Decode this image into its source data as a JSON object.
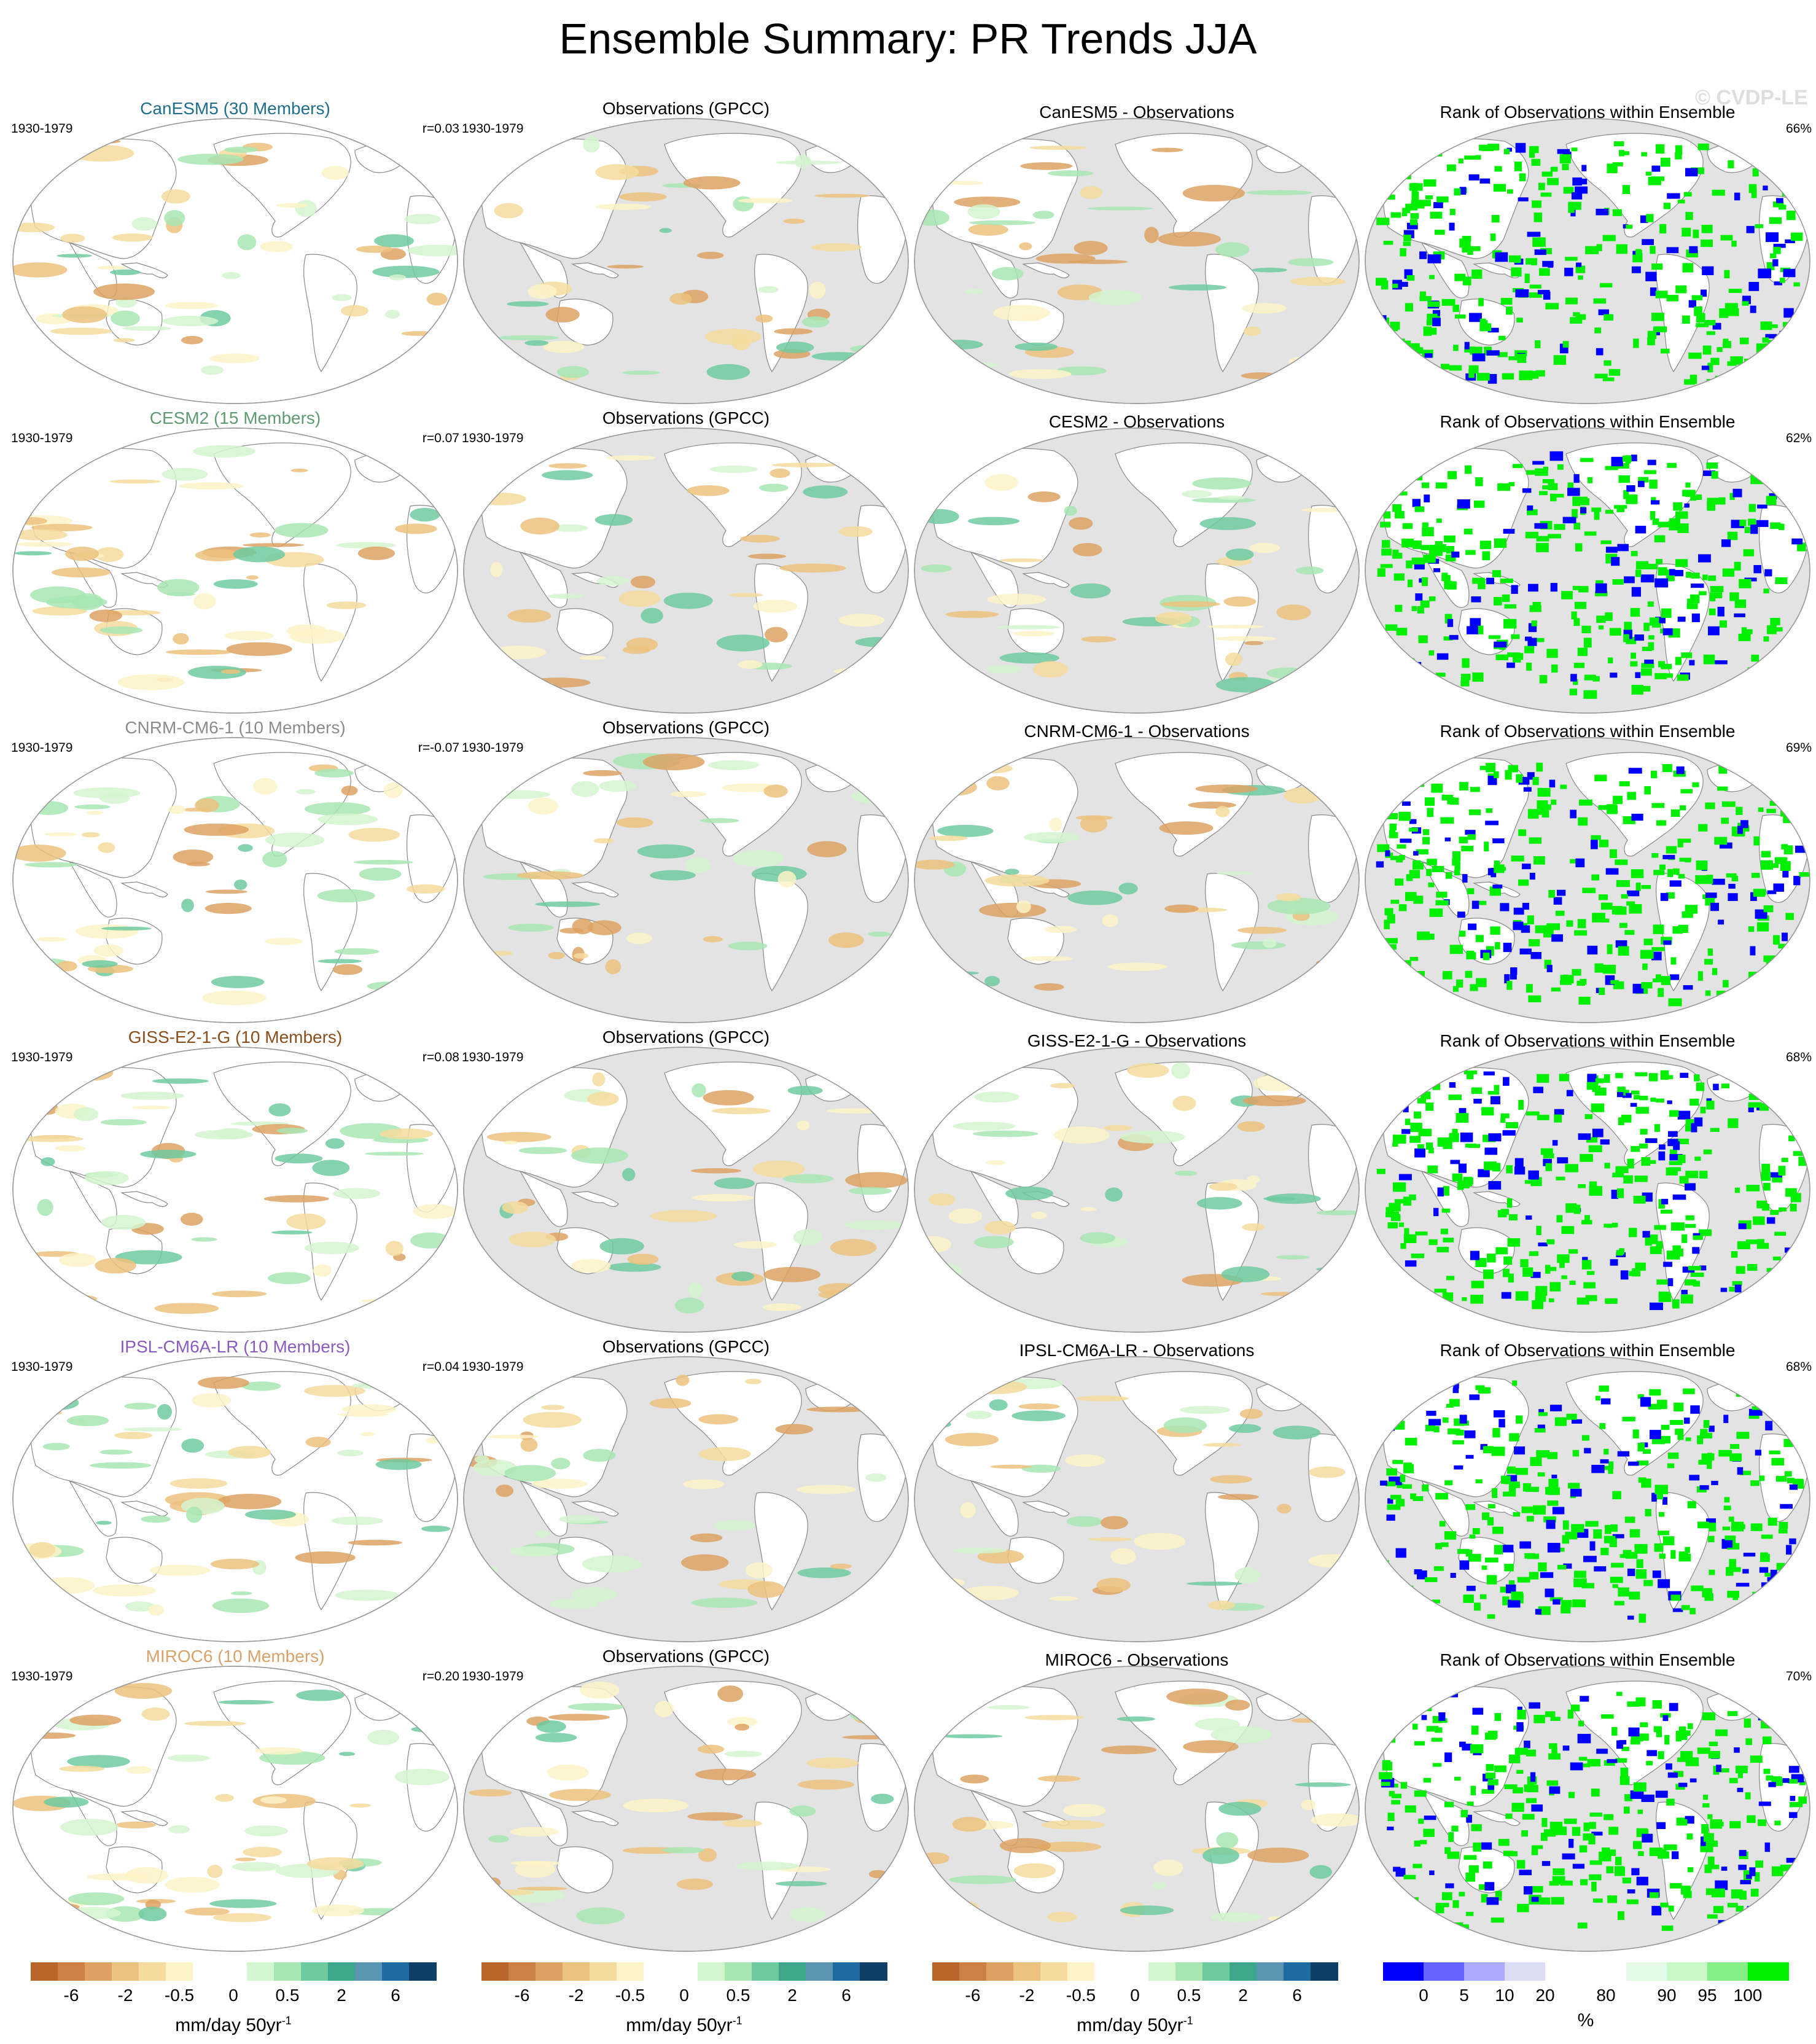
{
  "title": "Ensemble Summary: PR Trends JJA",
  "watermark": "© CVDP-LE",
  "period": "1930-1979",
  "obs_title": "Observations (GPCC)",
  "rank_title": "Rank of Observations within Ensemble",
  "rows": [
    {
      "model": "CanESM5",
      "members_label": "CanESM5 (30 Members)",
      "color": "#1f6e8c",
      "r": "r=0.03",
      "diff_title": "CanESM5 - Observations",
      "rank_pct": "66%"
    },
    {
      "model": "CESM2",
      "members_label": "CESM2 (15 Members)",
      "color": "#5f9a72",
      "r": "r=0.07",
      "diff_title": "CESM2 - Observations",
      "rank_pct": "62%"
    },
    {
      "model": "CNRM-CM6-1",
      "members_label": "CNRM-CM6-1 (10 Members)",
      "color": "#8c8c8c",
      "r": "r=-0.07",
      "diff_title": "CNRM-CM6-1 - Observations",
      "rank_pct": "69%"
    },
    {
      "model": "GISS-E2-1-G",
      "members_label": "GISS-E2-1-G (10 Members)",
      "color": "#8a4f1c",
      "r": "r=0.08",
      "diff_title": "GISS-E2-1-G - Observations",
      "rank_pct": "68%"
    },
    {
      "model": "IPSL-CM6A-LR",
      "members_label": "IPSL-CM6A-LR (10 Members)",
      "color": "#8a5bc0",
      "r": "r=0.04",
      "diff_title": "IPSL-CM6A-LR - Observations",
      "rank_pct": "68%"
    },
    {
      "model": "MIROC6",
      "members_label": "MIROC6 (10 Members)",
      "color": "#d8a26a",
      "r": "r=0.20",
      "diff_title": "MIROC6 - Observations",
      "rank_pct": "70%"
    }
  ],
  "colorbars": {
    "trend": {
      "colors": [
        "#b8662a",
        "#cc8045",
        "#dda263",
        "#ecc27f",
        "#f5dc9e",
        "#fdf3c8",
        "#ffffff",
        "#ffffff",
        "#d3f5cf",
        "#a8e6b4",
        "#6fcaa0",
        "#3ea68a",
        "#5a96b4",
        "#1f6aa0",
        "#0f3f66"
      ],
      "ticks": [
        "-6",
        "-2",
        "-0.5",
        "0",
        "0.5",
        "2",
        "6"
      ],
      "units": "mm/day 50yr",
      "units_sup": "-1"
    },
    "rank": {
      "colors": [
        "#0000ff",
        "#6666ff",
        "#aaaaff",
        "#dcdcf5",
        "#ffffff",
        "#ffffff",
        "#e6fbe6",
        "#c8f7c8",
        "#86ee86",
        "#00ee00"
      ],
      "ticks": [
        "0",
        "5",
        "10",
        "20",
        "80",
        "90",
        "95",
        "100"
      ],
      "units": "%"
    }
  }
}
